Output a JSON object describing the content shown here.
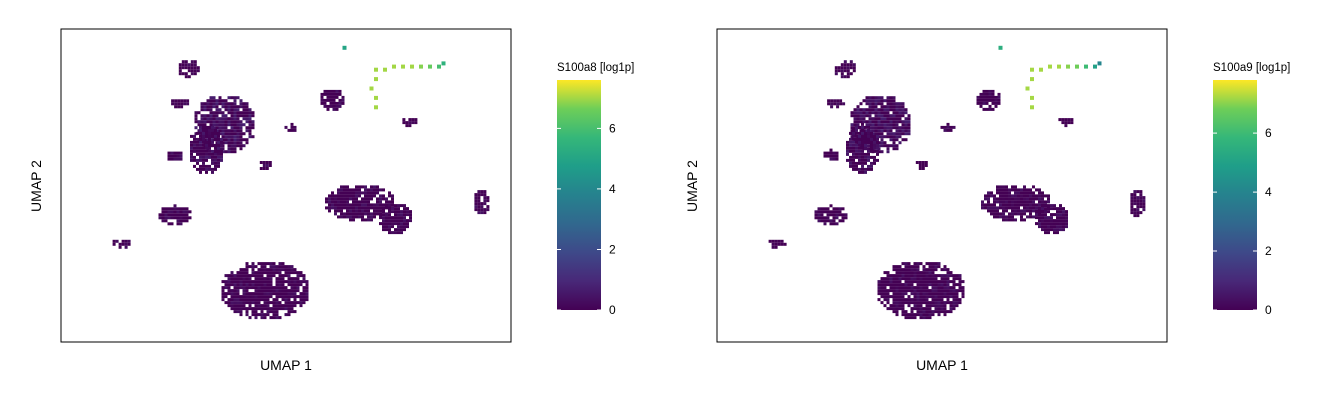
{
  "panels": [
    {
      "xlabel": "UMAP 1",
      "ylabel": "UMAP 2",
      "colorbar_title": "S100a8 [log1p]",
      "colorbar_ticks": [
        "0",
        "2",
        "4",
        "6"
      ]
    },
    {
      "xlabel": "UMAP 1",
      "ylabel": "UMAP 2",
      "colorbar_title": "S100a9 [log1p]",
      "colorbar_ticks": [
        "0",
        "2",
        "4",
        "6"
      ]
    }
  ],
  "chart_data": [
    {
      "type": "scatter",
      "gene": "S100a8",
      "xlabel": "UMAP 1",
      "ylabel": "UMAP 2",
      "color_scale": "viridis",
      "color_range": [
        0,
        7.6
      ],
      "colorbar_title": "S100a8 [log1p]",
      "colorbar_ticks": [
        0,
        2,
        4,
        6
      ],
      "clusters": [
        {
          "cx": 0.36,
          "cy": 0.3,
          "rx": 0.07,
          "ry": 0.095,
          "value": 0.4
        },
        {
          "cx": 0.32,
          "cy": 0.38,
          "rx": 0.04,
          "ry": 0.08,
          "value": 0.3
        },
        {
          "cx": 0.28,
          "cy": 0.12,
          "rx": 0.025,
          "ry": 0.03,
          "value": 0.1
        },
        {
          "cx": 0.66,
          "cy": 0.55,
          "rx": 0.08,
          "ry": 0.06,
          "value": 0.1
        },
        {
          "cx": 0.74,
          "cy": 0.6,
          "rx": 0.04,
          "ry": 0.05,
          "value": 0.1
        },
        {
          "cx": 0.45,
          "cy": 0.83,
          "rx": 0.1,
          "ry": 0.095,
          "value": 0.05
        },
        {
          "cx": 0.25,
          "cy": 0.59,
          "rx": 0.04,
          "ry": 0.03,
          "value": 0.1
        },
        {
          "cx": 0.13,
          "cy": 0.68,
          "rx": 0.022,
          "ry": 0.016,
          "value": 0.05
        },
        {
          "cx": 0.93,
          "cy": 0.55,
          "rx": 0.018,
          "ry": 0.045,
          "value": 0.1
        },
        {
          "cx": 0.6,
          "cy": 0.22,
          "rx": 0.03,
          "ry": 0.035,
          "value": 0.1
        },
        {
          "cx": 0.77,
          "cy": 0.29,
          "rx": 0.018,
          "ry": 0.015,
          "value": 0.1
        },
        {
          "cx": 0.45,
          "cy": 0.43,
          "rx": 0.015,
          "ry": 0.018,
          "value": 0.1
        },
        {
          "cx": 0.25,
          "cy": 0.4,
          "rx": 0.02,
          "ry": 0.018,
          "value": 0.1
        },
        {
          "cx": 0.26,
          "cy": 0.23,
          "rx": 0.022,
          "ry": 0.015,
          "value": 0.1
        },
        {
          "cx": 0.51,
          "cy": 0.31,
          "rx": 0.02,
          "ry": 0.01,
          "value": 0.1
        }
      ],
      "high_expression_strand": [
        {
          "x": 0.7,
          "y": 0.13,
          "value": 7.0
        },
        {
          "x": 0.72,
          "y": 0.13,
          "value": 7.0
        },
        {
          "x": 0.74,
          "y": 0.12,
          "value": 7.0
        },
        {
          "x": 0.76,
          "y": 0.12,
          "value": 7.0
        },
        {
          "x": 0.78,
          "y": 0.12,
          "value": 7.0
        },
        {
          "x": 0.8,
          "y": 0.12,
          "value": 6.8
        },
        {
          "x": 0.82,
          "y": 0.12,
          "value": 6.5
        },
        {
          "x": 0.84,
          "y": 0.12,
          "value": 6.0
        },
        {
          "x": 0.85,
          "y": 0.11,
          "value": 5.5
        },
        {
          "x": 0.7,
          "y": 0.16,
          "value": 7.0
        },
        {
          "x": 0.69,
          "y": 0.19,
          "value": 7.0
        },
        {
          "x": 0.7,
          "y": 0.22,
          "value": 7.0
        },
        {
          "x": 0.7,
          "y": 0.25,
          "value": 7.0
        },
        {
          "x": 0.63,
          "y": 0.06,
          "value": 5.0
        }
      ]
    },
    {
      "type": "scatter",
      "gene": "S100a9",
      "xlabel": "UMAP 1",
      "ylabel": "UMAP 2",
      "color_scale": "viridis",
      "color_range": [
        0,
        7.8
      ],
      "colorbar_title": "S100a9 [log1p]",
      "colorbar_ticks": [
        0,
        2,
        4,
        6
      ],
      "clusters": [
        {
          "cx": 0.36,
          "cy": 0.3,
          "rx": 0.07,
          "ry": 0.095,
          "value": 0.4
        },
        {
          "cx": 0.32,
          "cy": 0.38,
          "rx": 0.04,
          "ry": 0.08,
          "value": 0.3
        },
        {
          "cx": 0.28,
          "cy": 0.12,
          "rx": 0.025,
          "ry": 0.03,
          "value": 0.1
        },
        {
          "cx": 0.66,
          "cy": 0.55,
          "rx": 0.08,
          "ry": 0.06,
          "value": 0.1
        },
        {
          "cx": 0.74,
          "cy": 0.6,
          "rx": 0.04,
          "ry": 0.05,
          "value": 0.1
        },
        {
          "cx": 0.45,
          "cy": 0.83,
          "rx": 0.1,
          "ry": 0.095,
          "value": 0.05
        },
        {
          "cx": 0.25,
          "cy": 0.59,
          "rx": 0.04,
          "ry": 0.03,
          "value": 0.1
        },
        {
          "cx": 0.13,
          "cy": 0.68,
          "rx": 0.022,
          "ry": 0.016,
          "value": 0.05
        },
        {
          "cx": 0.93,
          "cy": 0.55,
          "rx": 0.018,
          "ry": 0.045,
          "value": 0.1
        },
        {
          "cx": 0.6,
          "cy": 0.22,
          "rx": 0.03,
          "ry": 0.035,
          "value": 0.1
        },
        {
          "cx": 0.77,
          "cy": 0.29,
          "rx": 0.018,
          "ry": 0.015,
          "value": 0.1
        },
        {
          "cx": 0.45,
          "cy": 0.43,
          "rx": 0.015,
          "ry": 0.018,
          "value": 0.1
        },
        {
          "cx": 0.25,
          "cy": 0.4,
          "rx": 0.02,
          "ry": 0.018,
          "value": 0.1
        },
        {
          "cx": 0.26,
          "cy": 0.23,
          "rx": 0.022,
          "ry": 0.015,
          "value": 0.1
        },
        {
          "cx": 0.51,
          "cy": 0.31,
          "rx": 0.02,
          "ry": 0.01,
          "value": 0.1
        }
      ],
      "high_expression_strand": [
        {
          "x": 0.7,
          "y": 0.13,
          "value": 7.2
        },
        {
          "x": 0.72,
          "y": 0.13,
          "value": 7.2
        },
        {
          "x": 0.74,
          "y": 0.12,
          "value": 7.2
        },
        {
          "x": 0.76,
          "y": 0.12,
          "value": 7.2
        },
        {
          "x": 0.78,
          "y": 0.12,
          "value": 7.0
        },
        {
          "x": 0.8,
          "y": 0.12,
          "value": 6.8
        },
        {
          "x": 0.82,
          "y": 0.12,
          "value": 6.0
        },
        {
          "x": 0.84,
          "y": 0.12,
          "value": 5.0
        },
        {
          "x": 0.85,
          "y": 0.11,
          "value": 4.0
        },
        {
          "x": 0.7,
          "y": 0.16,
          "value": 7.2
        },
        {
          "x": 0.69,
          "y": 0.19,
          "value": 7.2
        },
        {
          "x": 0.7,
          "y": 0.22,
          "value": 7.2
        },
        {
          "x": 0.7,
          "y": 0.25,
          "value": 7.2
        },
        {
          "x": 0.63,
          "y": 0.06,
          "value": 5.5
        }
      ]
    }
  ]
}
